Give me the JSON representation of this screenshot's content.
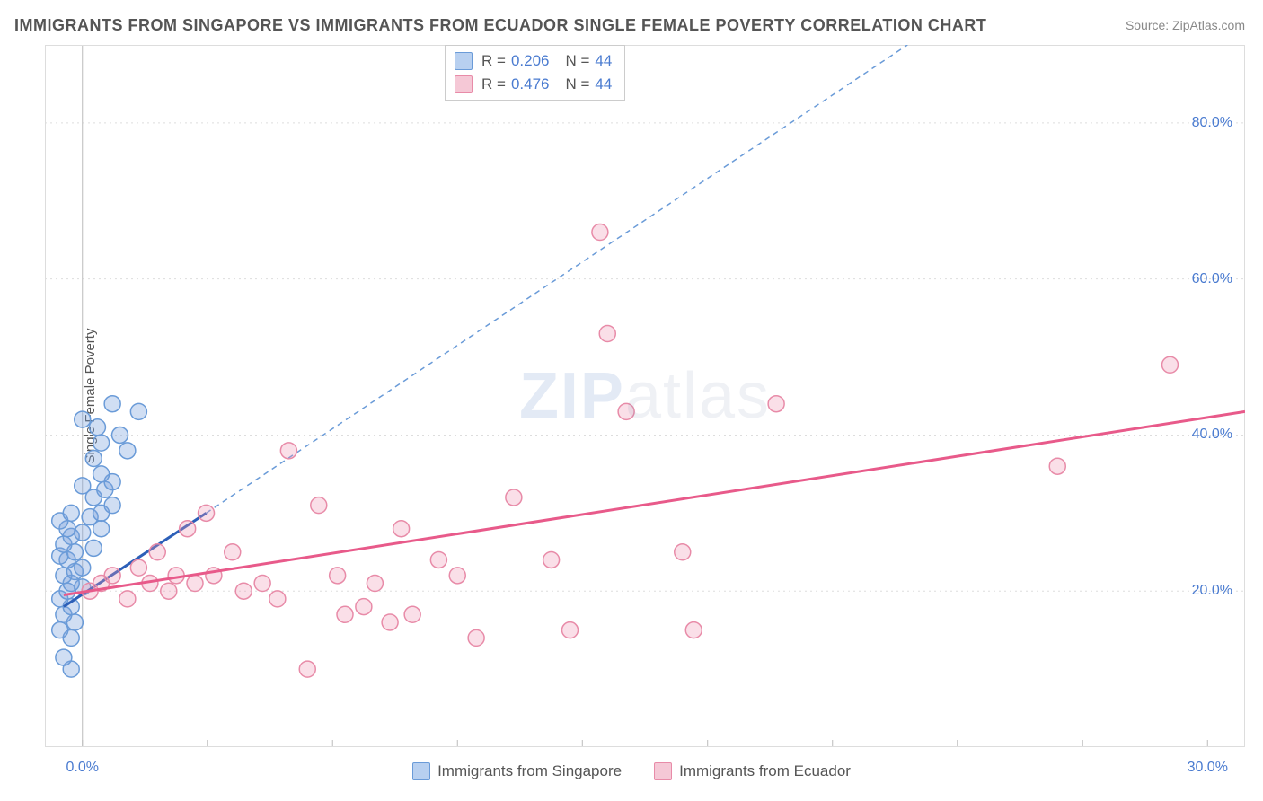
{
  "title": "IMMIGRANTS FROM SINGAPORE VS IMMIGRANTS FROM ECUADOR SINGLE FEMALE POVERTY CORRELATION CHART",
  "source": "Source: ZipAtlas.com",
  "y_axis_label": "Single Female Poverty",
  "watermark": {
    "part1": "ZIP",
    "part2": "atlas"
  },
  "chart": {
    "type": "scatter",
    "background_color": "#ffffff",
    "grid_color": "#dddddd",
    "axis_color": "#bbbbbb",
    "tick_color": "#bbbbbb",
    "border_color": "#dddddd",
    "xlim": [
      -1,
      31
    ],
    "ylim": [
      0,
      90
    ],
    "x_ticks": [
      0,
      3.33,
      6.67,
      10,
      13.33,
      16.67,
      20,
      23.33,
      26.67,
      30
    ],
    "x_tick_labels": {
      "0": "0.0%",
      "30": "30.0%"
    },
    "y_ticks": [
      20,
      40,
      60,
      80
    ],
    "y_tick_labels": {
      "20": "20.0%",
      "40": "40.0%",
      "60": "60.0%",
      "80": "80.0%"
    },
    "label_color": "#4a7bd0",
    "label_fontsize": 16,
    "marker_radius": 9,
    "marker_stroke_width": 1.5,
    "series": [
      {
        "name": "Immigrants from Singapore",
        "marker_fill": "rgba(120,160,220,0.35)",
        "marker_stroke": "#6a9bd8",
        "swatch_fill": "#b8d0f0",
        "swatch_stroke": "#6a9bd8",
        "trend_line": {
          "x1": -0.5,
          "y1": 18,
          "x2": 3.3,
          "y2": 30,
          "color": "#2c5fb8",
          "width": 3,
          "dash": "none"
        },
        "extrapolation": {
          "x1": 3.3,
          "y1": 30,
          "x2": 22,
          "y2": 90,
          "color": "#6a9bd8",
          "width": 1.5,
          "dash": "6,5"
        },
        "points": [
          [
            -0.3,
            10
          ],
          [
            -0.5,
            11.5
          ],
          [
            -0.3,
            14
          ],
          [
            -0.6,
            15
          ],
          [
            -0.2,
            16
          ],
          [
            -0.5,
            17
          ],
          [
            -0.3,
            18
          ],
          [
            -0.6,
            19
          ],
          [
            -0.4,
            20
          ],
          [
            0,
            20.5
          ],
          [
            -0.3,
            21
          ],
          [
            -0.5,
            22
          ],
          [
            -0.2,
            22.5
          ],
          [
            0,
            23
          ],
          [
            -0.4,
            24
          ],
          [
            -0.6,
            24.5
          ],
          [
            -0.2,
            25
          ],
          [
            0.3,
            25.5
          ],
          [
            -0.5,
            26
          ],
          [
            -0.3,
            27
          ],
          [
            0,
            27.5
          ],
          [
            -0.4,
            28
          ],
          [
            0.5,
            28
          ],
          [
            -0.6,
            29
          ],
          [
            0.2,
            29.5
          ],
          [
            -0.3,
            30
          ],
          [
            0.5,
            30
          ],
          [
            0.8,
            31
          ],
          [
            0.3,
            32
          ],
          [
            0.6,
            33
          ],
          [
            0,
            33.5
          ],
          [
            0.8,
            34
          ],
          [
            0.5,
            35
          ],
          [
            0.3,
            37
          ],
          [
            1.2,
            38
          ],
          [
            0.5,
            39
          ],
          [
            1.0,
            40
          ],
          [
            0.4,
            41
          ],
          [
            0,
            42
          ],
          [
            1.5,
            43
          ],
          [
            0.8,
            44
          ]
        ]
      },
      {
        "name": "Immigrants from Ecuador",
        "marker_fill": "rgba(240,150,180,0.3)",
        "marker_stroke": "#e88ba8",
        "swatch_fill": "#f5c8d6",
        "swatch_stroke": "#e88ba8",
        "trend_line": {
          "x1": -0.5,
          "y1": 19.5,
          "x2": 31,
          "y2": 43,
          "color": "#e85a8a",
          "width": 3,
          "dash": "none"
        },
        "points": [
          [
            0.2,
            20
          ],
          [
            0.5,
            21
          ],
          [
            0.8,
            22
          ],
          [
            1.2,
            19
          ],
          [
            1.5,
            23
          ],
          [
            1.8,
            21
          ],
          [
            2.0,
            25
          ],
          [
            2.3,
            20
          ],
          [
            2.5,
            22
          ],
          [
            2.8,
            28
          ],
          [
            3.0,
            21
          ],
          [
            3.3,
            30
          ],
          [
            3.5,
            22
          ],
          [
            4.0,
            25
          ],
          [
            4.3,
            20
          ],
          [
            4.8,
            21
          ],
          [
            5.2,
            19
          ],
          [
            5.5,
            38
          ],
          [
            6.0,
            10
          ],
          [
            6.3,
            31
          ],
          [
            6.8,
            22
          ],
          [
            7.0,
            17
          ],
          [
            7.5,
            18
          ],
          [
            7.8,
            21
          ],
          [
            8.2,
            16
          ],
          [
            8.5,
            28
          ],
          [
            8.8,
            17
          ],
          [
            9.5,
            24
          ],
          [
            10.0,
            22
          ],
          [
            10.5,
            14
          ],
          [
            11.5,
            32
          ],
          [
            12.5,
            24
          ],
          [
            13.0,
            15
          ],
          [
            13.8,
            66
          ],
          [
            14.0,
            53
          ],
          [
            14.5,
            43
          ],
          [
            16.0,
            25
          ],
          [
            16.3,
            15
          ],
          [
            18.5,
            44
          ],
          [
            26.0,
            36
          ],
          [
            29.0,
            49
          ]
        ]
      }
    ]
  },
  "stats": [
    {
      "swatch_fill": "#b8d0f0",
      "swatch_stroke": "#6a9bd8",
      "r_label": "R =",
      "r": "0.206",
      "n_label": "N =",
      "n": "44"
    },
    {
      "swatch_fill": "#f5c8d6",
      "swatch_stroke": "#e88ba8",
      "r_label": "R =",
      "r": "0.476",
      "n_label": "N =",
      "n": "44"
    }
  ],
  "bottom_legend": [
    {
      "swatch_fill": "#b8d0f0",
      "swatch_stroke": "#6a9bd8",
      "label": "Immigrants from Singapore"
    },
    {
      "swatch_fill": "#f5c8d6",
      "swatch_stroke": "#e88ba8",
      "label": "Immigrants from Ecuador"
    }
  ]
}
